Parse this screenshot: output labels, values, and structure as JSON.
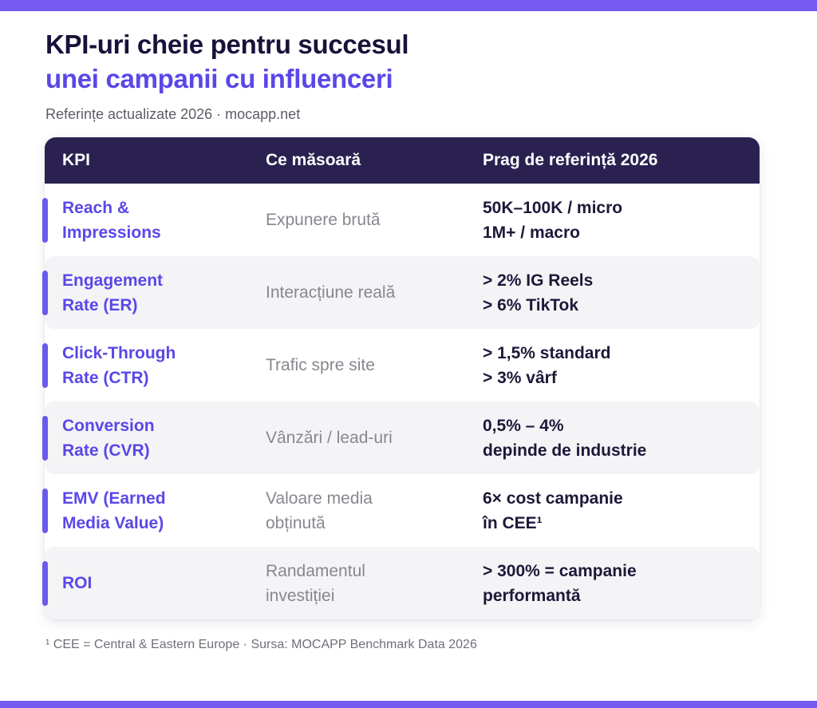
{
  "page": {
    "title_line1": "KPI-uri cheie pentru succesul",
    "title_line2": "unei campanii cu influenceri",
    "subtitle": "Referințe actualizate 2026  ·  mocapp.net",
    "footnote": "¹ CEE = Central & Eastern Europe  ·  Sursa: MOCAPP Benchmark Data 2026"
  },
  "colors": {
    "brand_purple_bar": "#7659f1",
    "accent_purple": "#6b5aea",
    "kpi_text_purple": "#5a47e8",
    "header_navy": "#2a2150",
    "benchmark_text": "#1d1839",
    "muted_gray": "#87878f",
    "row_alt_gray": "#f4f4f6"
  },
  "table": {
    "headers": [
      "KPI",
      "Ce măsoară",
      "Prag de referință 2026"
    ],
    "rows": [
      {
        "kpi": "Reach &\nImpressions",
        "measure": "Expunere brută",
        "benchmark": "50K–100K / micro\n1M+ / macro"
      },
      {
        "kpi": "Engagement\nRate (ER)",
        "measure": "Interacțiune reală",
        "benchmark": "> 2% IG Reels\n> 6% TikTok"
      },
      {
        "kpi": "Click-Through\nRate (CTR)",
        "measure": "Trafic spre site",
        "benchmark": "> 1,5% standard\n> 3% vârf"
      },
      {
        "kpi": "Conversion\nRate (CVR)",
        "measure": "Vânzări / lead-uri",
        "benchmark": "0,5% – 4%\ndepinde de industrie"
      },
      {
        "kpi": "EMV (Earned\nMedia Value)",
        "measure": "Valoare media\nobținută",
        "benchmark": "6× cost campanie\nîn CEE¹"
      },
      {
        "kpi": "ROI",
        "measure": "Randamentul\ninvestiției",
        "benchmark": "> 300% = campanie\nperformantă"
      }
    ]
  },
  "chart_data": {
    "type": "table",
    "title": "KPI-uri cheie pentru succesul unei campanii cu influenceri",
    "subtitle": "Referințe actualizate 2026 · mocapp.net",
    "columns": [
      "KPI",
      "Ce măsoară",
      "Prag de referință 2026"
    ],
    "rows": [
      [
        "Reach & Impressions",
        "Expunere brută",
        "50K–100K / micro; 1M+ / macro"
      ],
      [
        "Engagement Rate (ER)",
        "Interacțiune reală",
        "> 2% IG Reels; > 6% TikTok"
      ],
      [
        "Click-Through Rate (CTR)",
        "Trafic spre site",
        "> 1,5% standard; > 3% vârf"
      ],
      [
        "Conversion Rate (CVR)",
        "Vânzări / lead-uri",
        "0,5% – 4% depinde de industrie"
      ],
      [
        "EMV (Earned Media Value)",
        "Valoare media obținută",
        "6× cost campanie în CEE¹"
      ],
      [
        "ROI",
        "Randamentul investiției",
        "> 300% = campanie performantă"
      ]
    ],
    "footnote": "¹ CEE = Central & Eastern Europe · Sursa: MOCAPP Benchmark Data 2026"
  }
}
